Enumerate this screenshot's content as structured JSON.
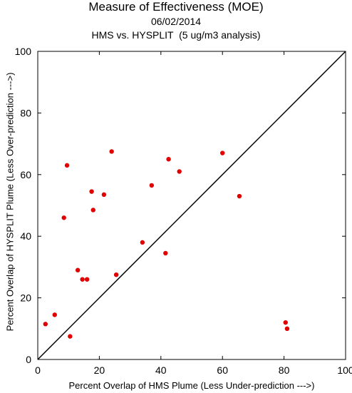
{
  "chart_data": {
    "type": "scatter",
    "title": "Measure of Effectiveness (MOE)",
    "subtitle_date": "06/02/2014",
    "subtitle_analysis": "HMS vs. HYSPLIT  (5 ug/m3 analysis)",
    "xlabel": "Percent Overlap of HMS Plume (Less Under-prediction --->)",
    "ylabel": "Percent Overlap of HYSPLIT Plume (Less Over-prediction --->)",
    "xlim": [
      0,
      100
    ],
    "ylim": [
      0,
      100
    ],
    "x_ticks": [
      "0",
      "20",
      "40",
      "60",
      "80",
      "100"
    ],
    "y_ticks": [
      "0",
      "20",
      "40",
      "60",
      "80",
      "100"
    ],
    "reference_line": "1:1 diagonal",
    "point_color": "#e00000",
    "points": [
      {
        "x": 2.5,
        "y": 11.5
      },
      {
        "x": 5.5,
        "y": 14.5
      },
      {
        "x": 10.5,
        "y": 7.5
      },
      {
        "x": 9.5,
        "y": 63.0
      },
      {
        "x": 8.5,
        "y": 46.0
      },
      {
        "x": 13.0,
        "y": 29.0
      },
      {
        "x": 14.5,
        "y": 26.0
      },
      {
        "x": 16.0,
        "y": 26.0
      },
      {
        "x": 17.5,
        "y": 54.5
      },
      {
        "x": 18.0,
        "y": 48.5
      },
      {
        "x": 21.5,
        "y": 53.5
      },
      {
        "x": 24.0,
        "y": 67.5
      },
      {
        "x": 25.5,
        "y": 27.5
      },
      {
        "x": 34.0,
        "y": 38.0
      },
      {
        "x": 37.0,
        "y": 56.5
      },
      {
        "x": 41.5,
        "y": 34.5
      },
      {
        "x": 42.5,
        "y": 65.0
      },
      {
        "x": 46.0,
        "y": 61.0
      },
      {
        "x": 60.0,
        "y": 67.0
      },
      {
        "x": 65.5,
        "y": 53.0
      },
      {
        "x": 80.5,
        "y": 12.0
      },
      {
        "x": 81.0,
        "y": 10.0
      }
    ]
  }
}
